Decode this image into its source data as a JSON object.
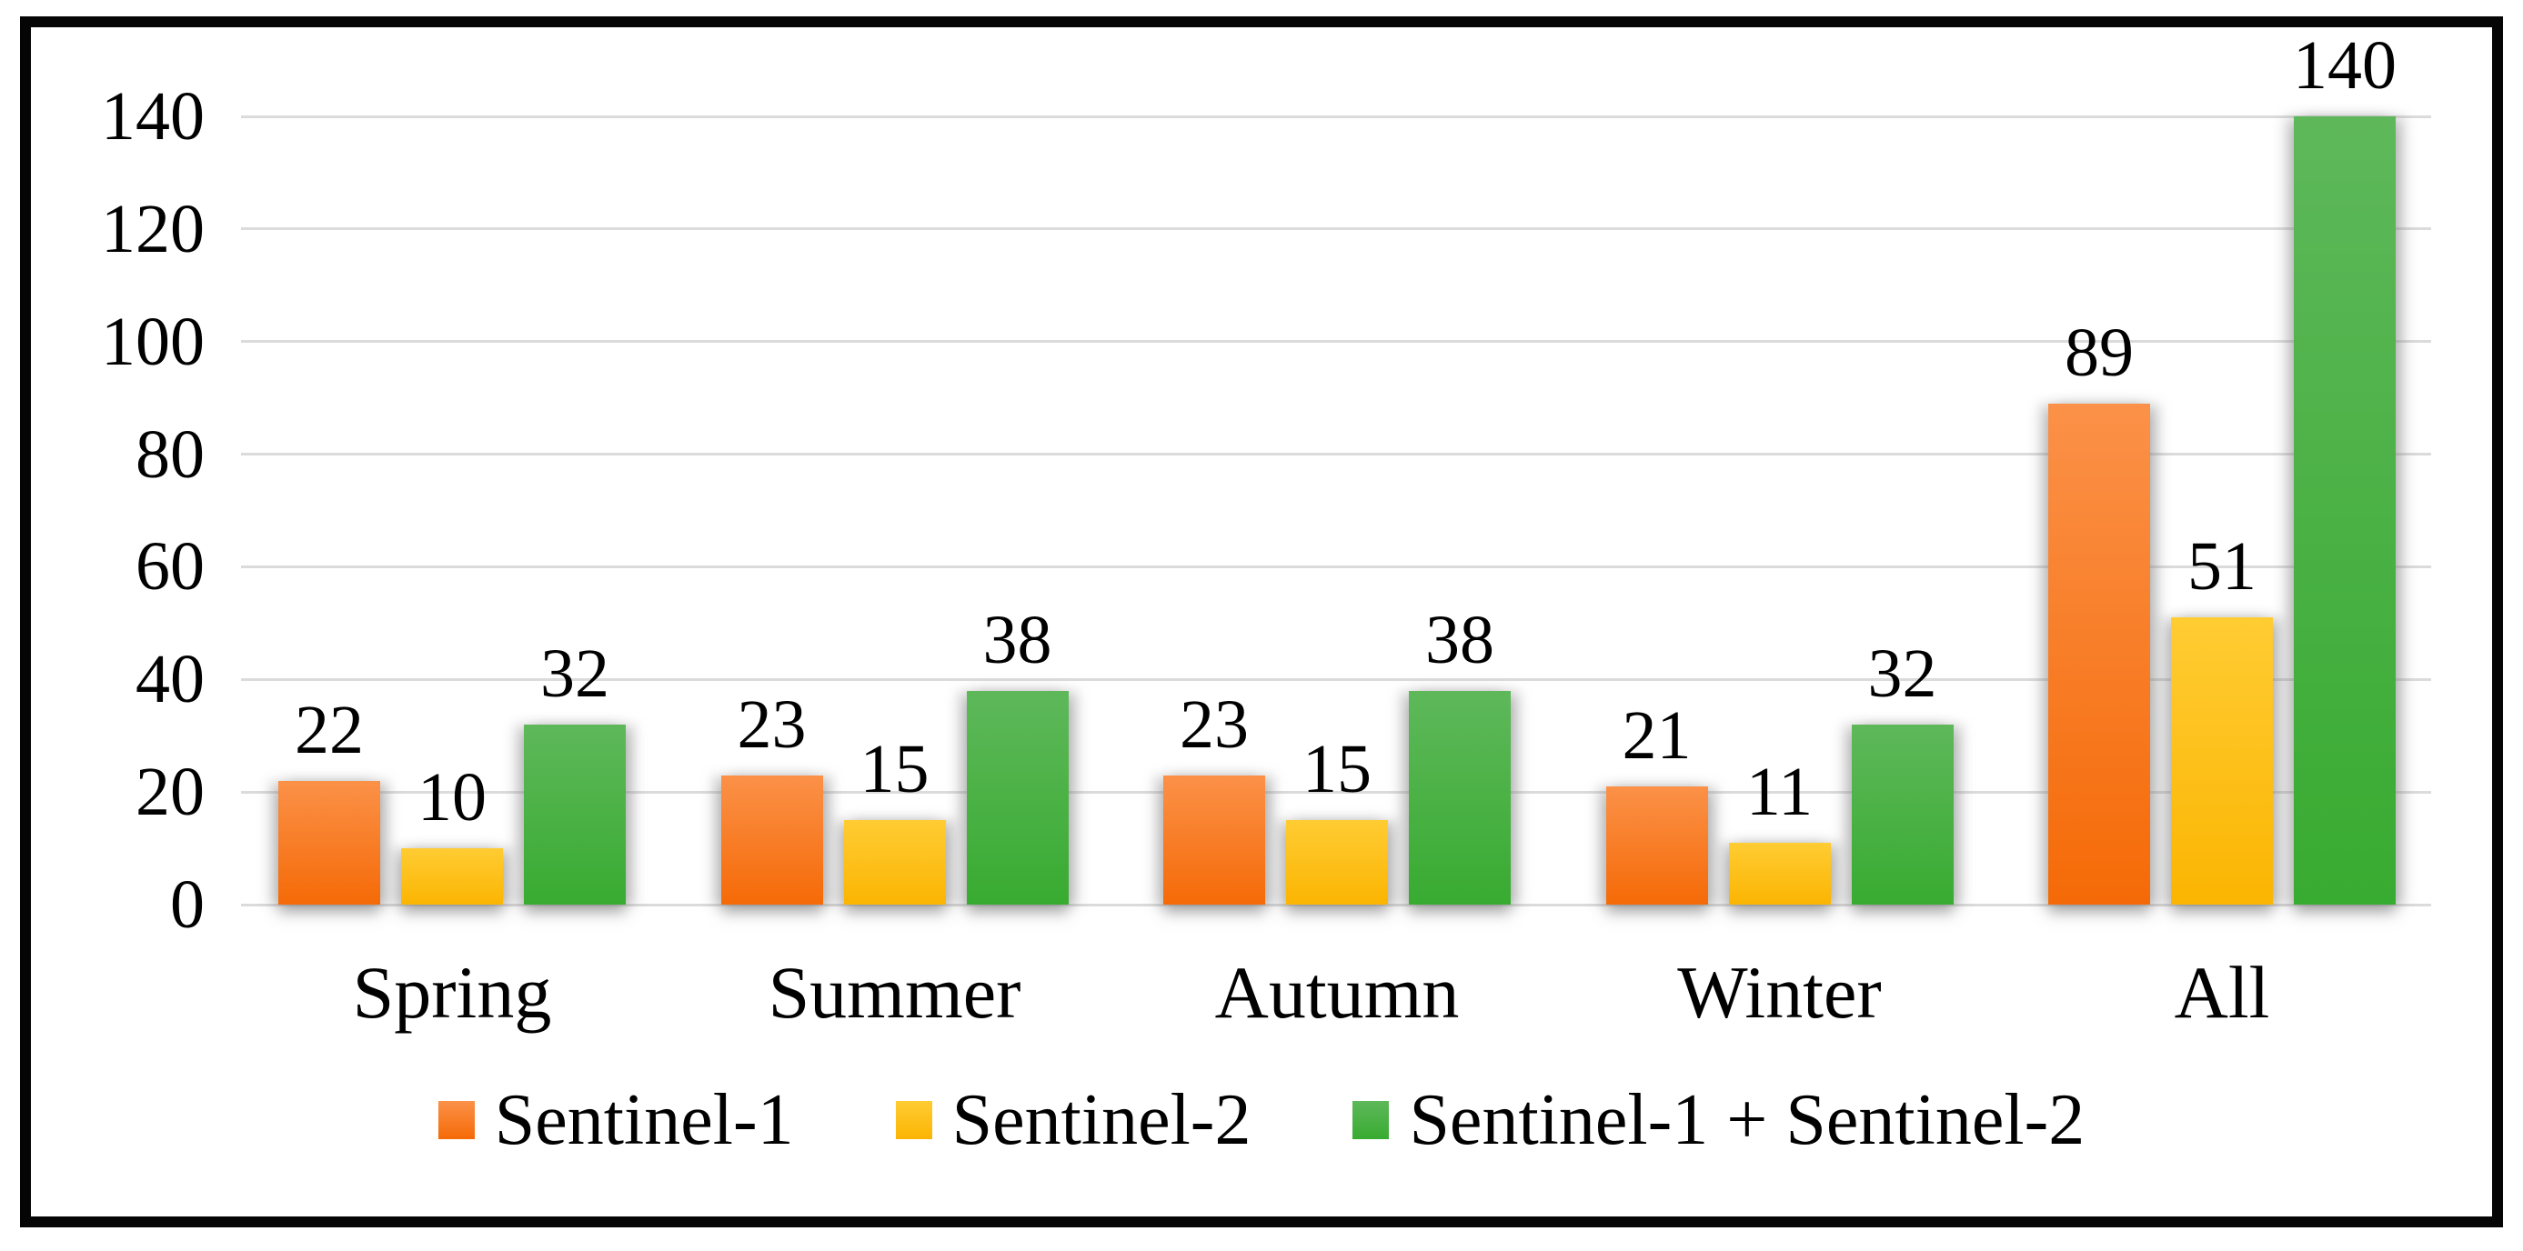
{
  "chart_data": {
    "type": "bar",
    "title": "",
    "xlabel": "",
    "ylabel": "",
    "categories": [
      "Spring",
      "Summer",
      "Autumn",
      "Winter",
      "All"
    ],
    "series": [
      {
        "name": "Sentinel-1",
        "color_top": "#FB9148",
        "color_bottom": "#F56A07",
        "values": [
          22,
          23,
          23,
          21,
          89
        ]
      },
      {
        "name": "Sentinel-2",
        "color_top": "#FFCC33",
        "color_bottom": "#FBB502",
        "values": [
          10,
          15,
          15,
          11,
          51
        ]
      },
      {
        "name": "Sentinel-1 + Sentinel-2",
        "color_top": "#5EB85A",
        "color_bottom": "#38AB31",
        "values": [
          32,
          38,
          38,
          32,
          140
        ]
      }
    ],
    "ylim": [
      0,
      140
    ],
    "yticks": [
      0,
      20,
      40,
      60,
      80,
      100,
      120,
      140
    ],
    "grid": true,
    "legend_position": "bottom"
  },
  "colors": {
    "background": "#FFFFFF",
    "frame": "#050505",
    "gridline": "#DBDBDB",
    "text": "#000000"
  }
}
